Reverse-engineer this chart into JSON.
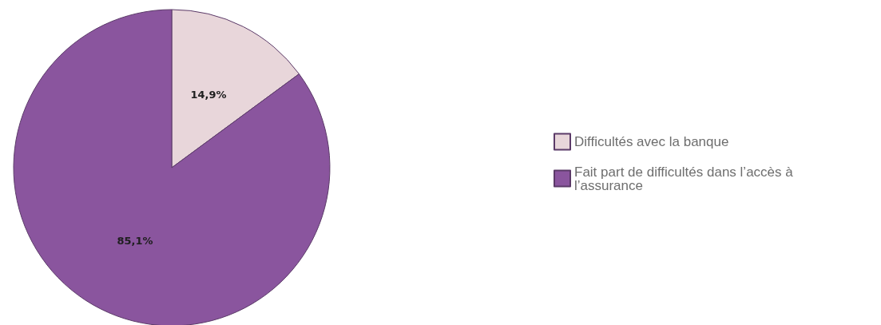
{
  "chart_data": {
    "type": "pie",
    "categories": [
      "Difficultés avec la banque",
      "Fait part de difficultés dans l’accès à l’assurance"
    ],
    "values": [
      14.9,
      85.1
    ],
    "colors": [
      "#e8d6da",
      "#8a559e"
    ],
    "value_labels": [
      "14,9%",
      "85,1%"
    ],
    "legend": "right"
  }
}
